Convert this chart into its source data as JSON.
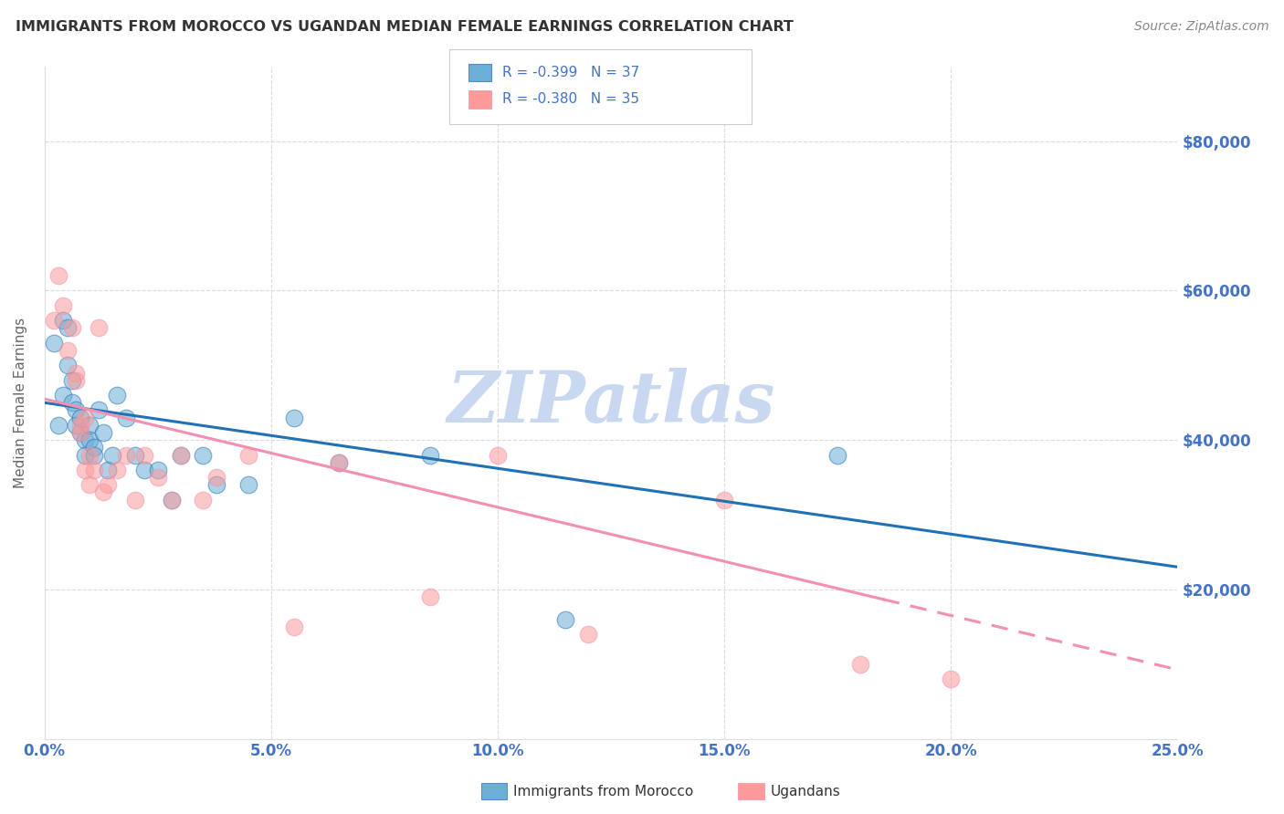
{
  "title": "IMMIGRANTS FROM MOROCCO VS UGANDAN MEDIAN FEMALE EARNINGS CORRELATION CHART",
  "source": "Source: ZipAtlas.com",
  "ylabel": "Median Female Earnings",
  "y_ticks": [
    20000,
    40000,
    60000,
    80000
  ],
  "y_tick_labels": [
    "$20,000",
    "$40,000",
    "$60,000",
    "$80,000"
  ],
  "xlim": [
    0.0,
    0.25
  ],
  "ylim": [
    0,
    90000
  ],
  "watermark": "ZIPatlas",
  "scatter_blue": {
    "x": [
      0.002,
      0.003,
      0.004,
      0.004,
      0.005,
      0.005,
      0.006,
      0.006,
      0.007,
      0.007,
      0.008,
      0.008,
      0.009,
      0.009,
      0.01,
      0.01,
      0.011,
      0.011,
      0.012,
      0.013,
      0.014,
      0.015,
      0.016,
      0.018,
      0.02,
      0.022,
      0.025,
      0.028,
      0.03,
      0.035,
      0.038,
      0.045,
      0.055,
      0.065,
      0.085,
      0.175,
      0.115
    ],
    "y": [
      53000,
      42000,
      56000,
      46000,
      55000,
      50000,
      45000,
      48000,
      44000,
      42000,
      41000,
      43000,
      40000,
      38000,
      42000,
      40000,
      39000,
      38000,
      44000,
      41000,
      36000,
      38000,
      46000,
      43000,
      38000,
      36000,
      36000,
      32000,
      38000,
      38000,
      34000,
      34000,
      43000,
      37000,
      38000,
      38000,
      16000
    ]
  },
  "scatter_pink": {
    "x": [
      0.002,
      0.003,
      0.004,
      0.005,
      0.006,
      0.007,
      0.007,
      0.008,
      0.008,
      0.009,
      0.009,
      0.01,
      0.01,
      0.011,
      0.012,
      0.013,
      0.014,
      0.016,
      0.018,
      0.02,
      0.022,
      0.025,
      0.028,
      0.03,
      0.035,
      0.038,
      0.045,
      0.055,
      0.065,
      0.085,
      0.1,
      0.12,
      0.15,
      0.18,
      0.2
    ],
    "y": [
      56000,
      62000,
      58000,
      52000,
      55000,
      49000,
      48000,
      42000,
      41000,
      43000,
      36000,
      38000,
      34000,
      36000,
      55000,
      33000,
      34000,
      36000,
      38000,
      32000,
      38000,
      35000,
      32000,
      38000,
      32000,
      35000,
      38000,
      15000,
      37000,
      19000,
      38000,
      14000,
      32000,
      10000,
      8000
    ]
  },
  "trendline_blue_slope": -88000,
  "trendline_blue_intercept": 45000,
  "trendline_pink_slope": -145000,
  "trendline_pink_intercept": 45500,
  "trendline_pink_solid_end": 0.185,
  "blue_color": "#6baed6",
  "pink_color": "#fb9a99",
  "blue_line_color": "#2171b5",
  "pink_line_color": "#f48fb1",
  "bg_color": "#ffffff",
  "grid_color": "#cccccc",
  "title_color": "#333333",
  "axis_label_color": "#4472c4",
  "watermark_color": "#c8d8f0"
}
